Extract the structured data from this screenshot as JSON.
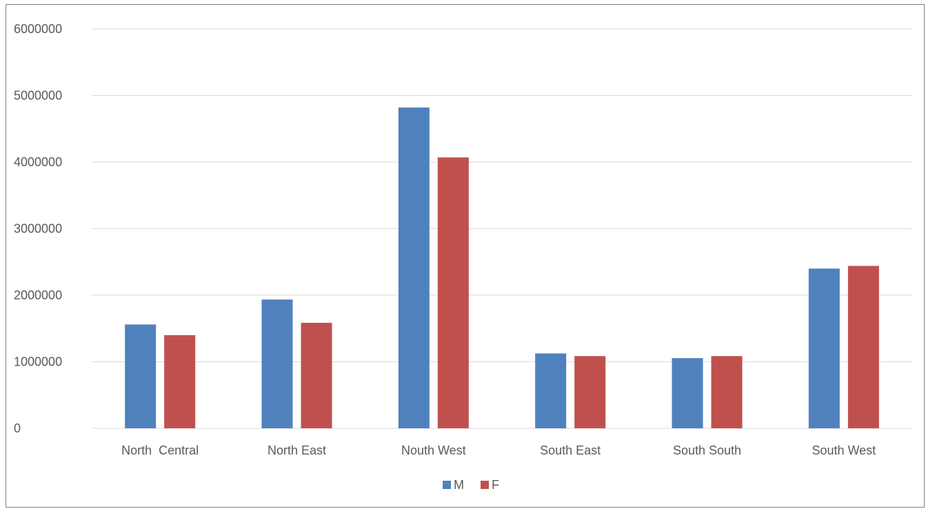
{
  "chart_data": {
    "type": "bar",
    "categories": [
      "North  Central",
      "North East",
      "Nouth West",
      "South East",
      "South South",
      "South West"
    ],
    "series": [
      {
        "name": "M",
        "color": "#4f81bd",
        "values": [
          1560000,
          1935000,
          4820000,
          1125000,
          1055000,
          2400000
        ]
      },
      {
        "name": "F",
        "color": "#c0504d",
        "values": [
          1400000,
          1585000,
          4070000,
          1085000,
          1085000,
          2440000
        ]
      }
    ],
    "ylim": [
      0,
      6000000
    ],
    "yticks": [
      0,
      1000000,
      2000000,
      3000000,
      4000000,
      5000000,
      6000000
    ],
    "ytick_labels": [
      "0",
      "1000000",
      "2000000",
      "3000000",
      "4000000",
      "5000000",
      "6000000"
    ],
    "grid": true,
    "legend_position": "bottom"
  }
}
